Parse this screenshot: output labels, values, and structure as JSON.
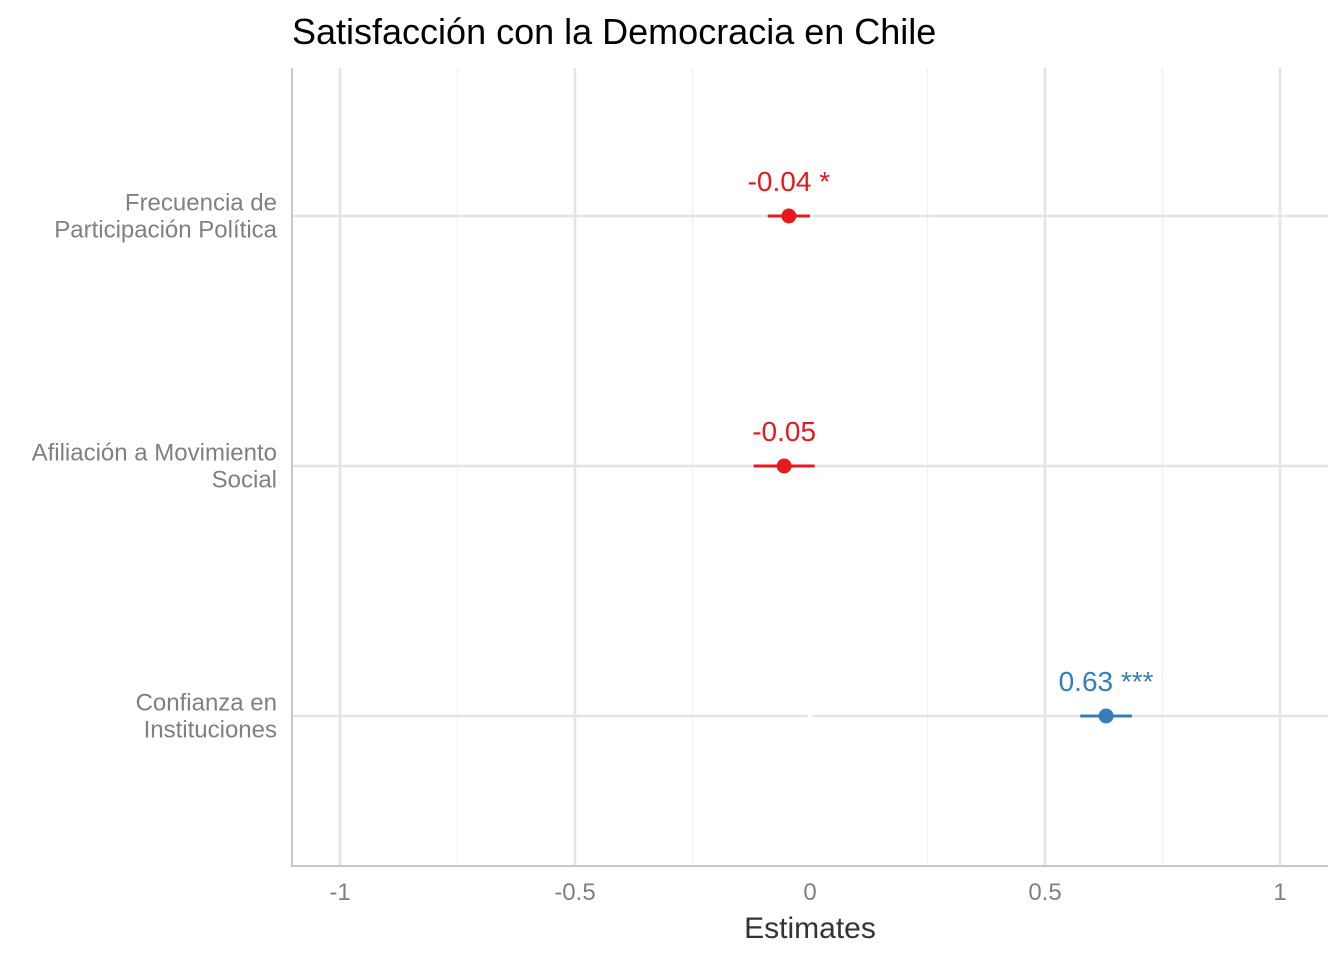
{
  "chart_data": {
    "type": "scatter",
    "subtype": "coefficient-plot",
    "title": "Satisfacción con la Democracia en Chile",
    "xlabel": "Estimates",
    "ylabel": "",
    "xlim": [
      -1.1,
      1.1
    ],
    "x_ticks": [
      -1,
      -0.5,
      0,
      0.5,
      1
    ],
    "x_tick_labels": [
      "-1",
      "-0.5",
      "0",
      "0.5",
      "1"
    ],
    "grid": true,
    "colors": {
      "negative": "#e41a1c",
      "positive": "#377eb8"
    },
    "terms": [
      {
        "label_lines": [
          "Frecuencia de",
          "Participación Política"
        ],
        "estimate": -0.045,
        "ci_low": -0.09,
        "ci_high": 0.0,
        "label": "-0.04 *",
        "sign": "negative"
      },
      {
        "label_lines": [
          "Afiliación a Movimiento",
          "Social"
        ],
        "estimate": -0.055,
        "ci_low": -0.12,
        "ci_high": 0.01,
        "label": "-0.05",
        "sign": "negative"
      },
      {
        "label_lines": [
          "Confianza en",
          "Instituciones"
        ],
        "estimate": 0.63,
        "ci_low": 0.575,
        "ci_high": 0.685,
        "label": "0.63 ***",
        "sign": "positive"
      }
    ]
  }
}
